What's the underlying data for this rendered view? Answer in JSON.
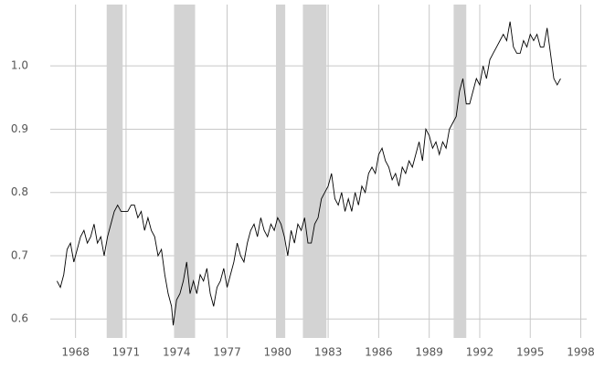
{
  "chart_data": {
    "type": "line",
    "x": [
      1966.9,
      1967.1,
      1967.3,
      1967.5,
      1967.7,
      1967.9,
      1968.1,
      1968.3,
      1968.5,
      1968.7,
      1968.9,
      1969.1,
      1969.3,
      1969.5,
      1969.7,
      1969.9,
      1970.1,
      1970.3,
      1970.5,
      1970.7,
      1970.9,
      1971.1,
      1971.3,
      1971.5,
      1971.7,
      1971.9,
      1972.1,
      1972.3,
      1972.5,
      1972.7,
      1972.9,
      1973.1,
      1973.3,
      1973.5,
      1973.7,
      1973.8,
      1974.0,
      1974.2,
      1974.4,
      1974.6,
      1974.8,
      1975.0,
      1975.2,
      1975.4,
      1975.6,
      1975.8,
      1976.0,
      1976.2,
      1976.4,
      1976.6,
      1976.8,
      1977.0,
      1977.2,
      1977.4,
      1977.6,
      1977.8,
      1978.0,
      1978.2,
      1978.4,
      1978.6,
      1978.8,
      1979.0,
      1979.2,
      1979.4,
      1979.6,
      1979.8,
      1980.0,
      1980.2,
      1980.4,
      1980.6,
      1980.8,
      1981.0,
      1981.2,
      1981.4,
      1981.6,
      1981.8,
      1982.0,
      1982.2,
      1982.4,
      1982.6,
      1982.8,
      1983.0,
      1983.2,
      1983.4,
      1983.6,
      1983.8,
      1984.0,
      1984.2,
      1984.4,
      1984.6,
      1984.8,
      1985.0,
      1985.2,
      1985.4,
      1985.6,
      1985.8,
      1986.0,
      1986.2,
      1986.4,
      1986.6,
      1986.8,
      1987.0,
      1987.2,
      1987.4,
      1987.6,
      1987.8,
      1988.0,
      1988.2,
      1988.4,
      1988.6,
      1988.8,
      1989.0,
      1989.2,
      1989.4,
      1989.6,
      1989.8,
      1990.0,
      1990.2,
      1990.4,
      1990.6,
      1990.8,
      1991.0,
      1991.2,
      1991.4,
      1991.6,
      1991.8,
      1992.0,
      1992.2,
      1992.4,
      1992.6,
      1992.8,
      1993.0,
      1993.2,
      1993.4,
      1993.6,
      1993.8,
      1994.0,
      1994.2,
      1994.4,
      1994.6,
      1994.8,
      1995.0,
      1995.2,
      1995.4,
      1995.6,
      1995.8,
      1996.0,
      1996.2,
      1996.4,
      1996.6,
      1996.8
    ],
    "series": [
      {
        "color": "#000000",
        "values": [
          0.66,
          0.65,
          0.67,
          0.71,
          0.72,
          0.69,
          0.71,
          0.73,
          0.74,
          0.72,
          0.73,
          0.75,
          0.72,
          0.73,
          0.7,
          0.73,
          0.75,
          0.77,
          0.78,
          0.77,
          0.77,
          0.77,
          0.78,
          0.78,
          0.76,
          0.77,
          0.74,
          0.76,
          0.74,
          0.73,
          0.7,
          0.71,
          0.67,
          0.64,
          0.62,
          0.59,
          0.63,
          0.64,
          0.66,
          0.69,
          0.64,
          0.66,
          0.64,
          0.67,
          0.66,
          0.68,
          0.64,
          0.62,
          0.65,
          0.66,
          0.68,
          0.65,
          0.67,
          0.69,
          0.72,
          0.7,
          0.69,
          0.72,
          0.74,
          0.75,
          0.73,
          0.76,
          0.74,
          0.73,
          0.75,
          0.74,
          0.76,
          0.75,
          0.73,
          0.7,
          0.74,
          0.72,
          0.75,
          0.74,
          0.76,
          0.72,
          0.72,
          0.75,
          0.76,
          0.79,
          0.8,
          0.81,
          0.83,
          0.79,
          0.78,
          0.8,
          0.77,
          0.79,
          0.77,
          0.8,
          0.78,
          0.81,
          0.8,
          0.83,
          0.84,
          0.83,
          0.86,
          0.87,
          0.85,
          0.84,
          0.82,
          0.83,
          0.81,
          0.84,
          0.83,
          0.85,
          0.84,
          0.86,
          0.88,
          0.85,
          0.9,
          0.89,
          0.87,
          0.88,
          0.86,
          0.88,
          0.87,
          0.9,
          0.91,
          0.92,
          0.96,
          0.98,
          0.94,
          0.94,
          0.96,
          0.98,
          0.97,
          1.0,
          0.98,
          1.01,
          1.02,
          1.03,
          1.04,
          1.05,
          1.04,
          1.07,
          1.03,
          1.02,
          1.02,
          1.04,
          1.03,
          1.05,
          1.04,
          1.05,
          1.03,
          1.03,
          1.06,
          1.02,
          0.98,
          0.97,
          0.98
        ]
      }
    ],
    "shaded_ranges": [
      [
        1969.85,
        1970.8
      ],
      [
        1973.85,
        1975.1
      ],
      [
        1979.9,
        1980.45
      ],
      [
        1981.5,
        1982.9
      ],
      [
        1990.45,
        1991.2
      ]
    ],
    "shade_color": "#d3d3d3",
    "xlim": [
      1966.5,
      1998.35
    ],
    "xticks": [
      1968,
      1971,
      1974,
      1977,
      1980,
      1983,
      1986,
      1989,
      1992,
      1995,
      1998
    ],
    "ylim": [
      0.57,
      1.097
    ],
    "yticks": [
      0.6,
      0.7,
      0.8,
      0.9,
      {
        "value": 1,
        "label": "1.0"
      }
    ],
    "grid": true
  }
}
